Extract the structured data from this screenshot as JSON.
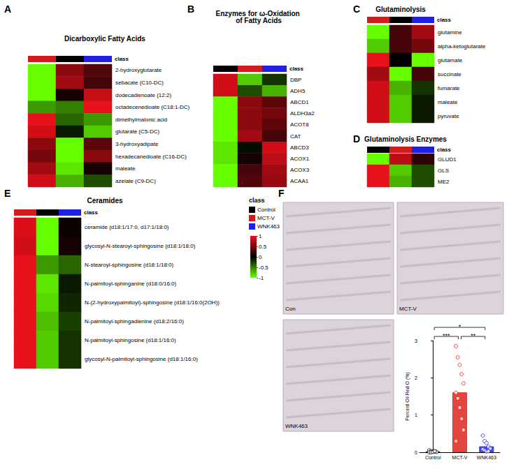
{
  "classes": {
    "title": "class",
    "names": [
      "Control",
      "MCT-V",
      "WNK463"
    ],
    "colors": [
      "#000000",
      "#d01c1c",
      "#2020e0"
    ]
  },
  "colorbar": {
    "range": [
      -1,
      1
    ],
    "ticks": [
      1,
      0.5,
      0,
      -0.5,
      -1
    ],
    "colors": [
      "#66ff00",
      "#000000",
      "#e8101a"
    ]
  },
  "chart_data": [
    {
      "type": "heatmap",
      "panel": "A",
      "title": "Dicarboxylic Fatty Acids",
      "columns": [
        "MCT-V",
        "Control",
        "WNK463"
      ],
      "rows": [
        "2-hydroxyglutarate",
        "sebacate (C10-DC)",
        "dodecadienoate (12:2)",
        "octadecenedioate (C18:1-DC)",
        "dimethylmalonic acid",
        "glutarate (C5-DC)",
        "3-hydroxyadipate",
        "hexadecanedioate (C16-DC)",
        "maleate",
        "azelate (C9-DC)"
      ],
      "cells": [
        [
          -1,
          0.6,
          0.35
        ],
        [
          -1,
          0.7,
          0.3
        ],
        [
          -1,
          0.1,
          0.85
        ],
        [
          -0.6,
          -0.5,
          1
        ],
        [
          1,
          -0.4,
          -0.6
        ],
        [
          0.9,
          -0.1,
          -0.8
        ],
        [
          0.6,
          -1,
          0.4
        ],
        [
          0.5,
          -1,
          0.6
        ],
        [
          0.7,
          -0.9,
          0.1
        ],
        [
          0.9,
          -0.7,
          -0.3
        ]
      ]
    },
    {
      "type": "heatmap",
      "panel": "B",
      "title": "Enzymes for ω-Oxidation of Fatty Acids",
      "columns": [
        "Control",
        "MCT-V",
        "WNK463"
      ],
      "rows": [
        "DBP",
        "ADH5",
        "ABCD1",
        "ALDH3a2",
        "ACOT8",
        "CAT",
        "ABCD3",
        "ACOX1",
        "ACOX3",
        "ACAA1"
      ],
      "cells": [
        [
          0.9,
          -0.8,
          -0.2
        ],
        [
          0.9,
          -0.3,
          -0.7
        ],
        [
          -1,
          0.6,
          0.4
        ],
        [
          -1,
          0.6,
          0.5
        ],
        [
          -1,
          0.6,
          0.4
        ],
        [
          -1,
          0.7,
          0.3
        ],
        [
          -0.9,
          -0.05,
          0.9
        ],
        [
          -0.9,
          0.1,
          0.8
        ],
        [
          -1,
          0.3,
          0.7
        ],
        [
          -1,
          0.35,
          0.65
        ]
      ]
    },
    {
      "type": "heatmap",
      "panel": "C",
      "title": "Glutaminolysis",
      "columns": [
        "MCT-V",
        "Control",
        "WNK463"
      ],
      "rows": [
        "glutamine",
        "alpha-ketoglutarate",
        "glutamate",
        "succinate",
        "fumarate",
        "maleate",
        "pyruvate"
      ],
      "cells": [
        [
          -1,
          0.3,
          0.7
        ],
        [
          -0.8,
          0.3,
          0.5
        ],
        [
          1,
          0,
          -1
        ],
        [
          0.7,
          -1,
          0.3
        ],
        [
          0.9,
          -0.7,
          -0.2
        ],
        [
          0.9,
          -0.8,
          -0.1
        ],
        [
          0.9,
          -0.8,
          -0.1
        ]
      ]
    },
    {
      "type": "heatmap",
      "panel": "D",
      "title": "Glutaminolysis Enzymes",
      "columns": [
        "Control",
        "MCT-V",
        "WNK463"
      ],
      "rows": [
        "GLUD1",
        "GLS",
        "ME2"
      ],
      "cells": [
        [
          -1,
          0.8,
          0.2
        ],
        [
          1,
          -0.8,
          -0.3
        ],
        [
          1,
          -0.7,
          -0.3
        ]
      ]
    },
    {
      "type": "heatmap",
      "panel": "E",
      "title": "Ceramides",
      "columns": [
        "MCT-V",
        "Control",
        "WNK463"
      ],
      "rows": [
        "ceramide (d18:1/17:0, d17:1/18:0)",
        "glycosyl-N-stearoyl-sphingosine (d18:1/18:0)",
        "N-stearoyl-sphingosine (d18:1/18:0)",
        "N-palmitoyl-sphinganine (d18:0/16:0)",
        "N-(2-hydroxypalmitoyl)-sphingosine (d18:1/16:0(2OH))",
        "N-palmitoyl-sphingadienine (d18:2/16:0)",
        "N-palmitoyl-sphingosine (d18:1/16:0)",
        "glycosyl-N-palmitoyl-sphingosine (d18:1/16:0)"
      ],
      "cells": [
        [
          0.95,
          -1,
          0.05
        ],
        [
          0.9,
          -1,
          0.1
        ],
        [
          1,
          -0.6,
          -0.4
        ],
        [
          1,
          -0.9,
          -0.1
        ],
        [
          1,
          -0.85,
          -0.15
        ],
        [
          1,
          -0.75,
          -0.25
        ],
        [
          1,
          -0.8,
          -0.2
        ],
        [
          1,
          -0.8,
          -0.2
        ]
      ]
    },
    {
      "type": "bar",
      "panel": "F",
      "images": [
        "Con",
        "MCT-V",
        "WNK463"
      ],
      "categories": [
        "Control",
        "MCT-V",
        "WNK463"
      ],
      "values": [
        0.02,
        1.61,
        0.16
      ],
      "colors": [
        "#000000",
        "#e0241c",
        "#2a2ae0"
      ],
      "points": [
        [
          0.05,
          0.03,
          0.02,
          0.02,
          0.01,
          0,
          0,
          0.01,
          0.03
        ],
        [
          2.85,
          2.55,
          2.35,
          2.1,
          1.85,
          1.6,
          1.45,
          1.2,
          0.9,
          0.6,
          0.3
        ],
        [
          0.45,
          0.3,
          0.25,
          0.15,
          0.1,
          0.08,
          0.05,
          0.02,
          0.03
        ]
      ],
      "ylabel": "Percent Oil Red O (%)",
      "ylim": [
        0,
        3
      ],
      "yticks": [
        0,
        1,
        2,
        3
      ],
      "significance": [
        {
          "pair": [
            0,
            1
          ],
          "label": "***"
        },
        {
          "pair": [
            1,
            2
          ],
          "label": "**"
        },
        {
          "pair": [
            0,
            2
          ],
          "label": "*"
        }
      ]
    }
  ]
}
